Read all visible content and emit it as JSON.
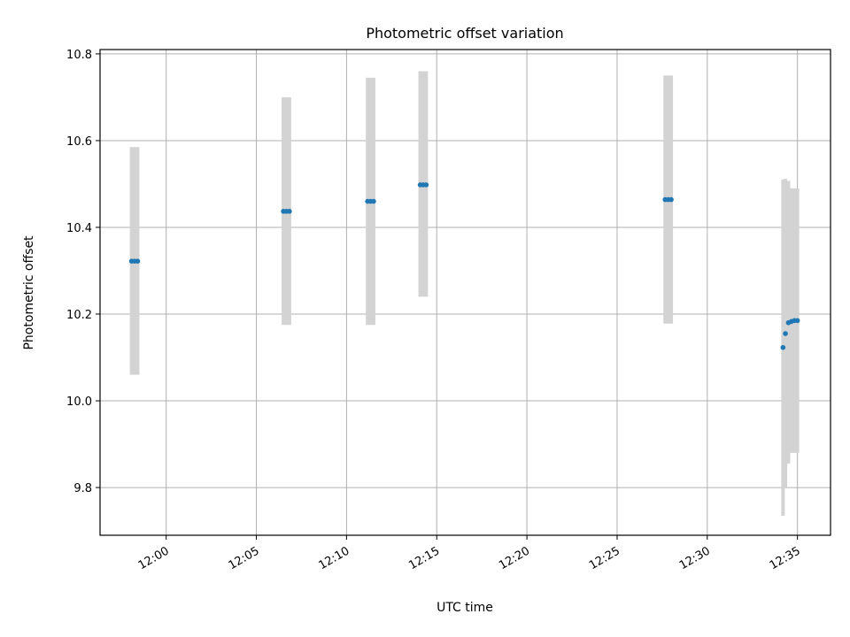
{
  "chart_data": {
    "type": "scatter",
    "title": "Photometric offset variation",
    "xlabel": "UTC time",
    "ylabel": "Photometric offset",
    "x_axis": "time",
    "xlim": [
      "11:56:20",
      "12:36:50"
    ],
    "ylim": [
      9.69,
      10.81
    ],
    "xticks": [
      "12:00",
      "12:05",
      "12:10",
      "12:15",
      "12:20",
      "12:25",
      "12:30",
      "12:35"
    ],
    "yticks": [
      "9.8",
      "10.0",
      "10.2",
      "10.4",
      "10.6",
      "10.8"
    ],
    "grid": true,
    "colors": {
      "points": "#1f77b4",
      "errorbars": "#d3d3d3",
      "grid": "#b0b0b0"
    },
    "points": [
      {
        "t": "11:58:05",
        "y": 10.322,
        "ylow": 10.06,
        "yhigh": 10.585
      },
      {
        "t": "11:58:15",
        "y": 10.322,
        "ylow": 10.06,
        "yhigh": 10.585
      },
      {
        "t": "11:58:25",
        "y": 10.322,
        "ylow": 10.06,
        "yhigh": 10.585
      },
      {
        "t": "12:06:30",
        "y": 10.437,
        "ylow": 10.175,
        "yhigh": 10.7
      },
      {
        "t": "12:06:40",
        "y": 10.437,
        "ylow": 10.175,
        "yhigh": 10.7
      },
      {
        "t": "12:06:50",
        "y": 10.437,
        "ylow": 10.175,
        "yhigh": 10.7
      },
      {
        "t": "12:11:10",
        "y": 10.46,
        "ylow": 10.175,
        "yhigh": 10.745
      },
      {
        "t": "12:11:20",
        "y": 10.46,
        "ylow": 10.175,
        "yhigh": 10.745
      },
      {
        "t": "12:11:30",
        "y": 10.46,
        "ylow": 10.175,
        "yhigh": 10.745
      },
      {
        "t": "12:14:05",
        "y": 10.498,
        "ylow": 10.24,
        "yhigh": 10.76
      },
      {
        "t": "12:14:15",
        "y": 10.498,
        "ylow": 10.24,
        "yhigh": 10.76
      },
      {
        "t": "12:14:25",
        "y": 10.498,
        "ylow": 10.24,
        "yhigh": 10.76
      },
      {
        "t": "12:27:40",
        "y": 10.464,
        "ylow": 10.178,
        "yhigh": 10.75
      },
      {
        "t": "12:27:50",
        "y": 10.464,
        "ylow": 10.178,
        "yhigh": 10.75
      },
      {
        "t": "12:28:00",
        "y": 10.464,
        "ylow": 10.178,
        "yhigh": 10.75
      },
      {
        "t": "12:34:12",
        "y": 10.123,
        "ylow": 9.735,
        "yhigh": 10.51
      },
      {
        "t": "12:34:20",
        "y": 10.155,
        "ylow": 9.8,
        "yhigh": 10.512
      },
      {
        "t": "12:34:30",
        "y": 10.18,
        "ylow": 9.855,
        "yhigh": 10.507
      },
      {
        "t": "12:34:40",
        "y": 10.183,
        "ylow": 9.88,
        "yhigh": 10.49
      },
      {
        "t": "12:34:50",
        "y": 10.185,
        "ylow": 9.88,
        "yhigh": 10.49
      },
      {
        "t": "12:35:00",
        "y": 10.185,
        "ylow": 9.88,
        "yhigh": 10.49
      }
    ]
  }
}
